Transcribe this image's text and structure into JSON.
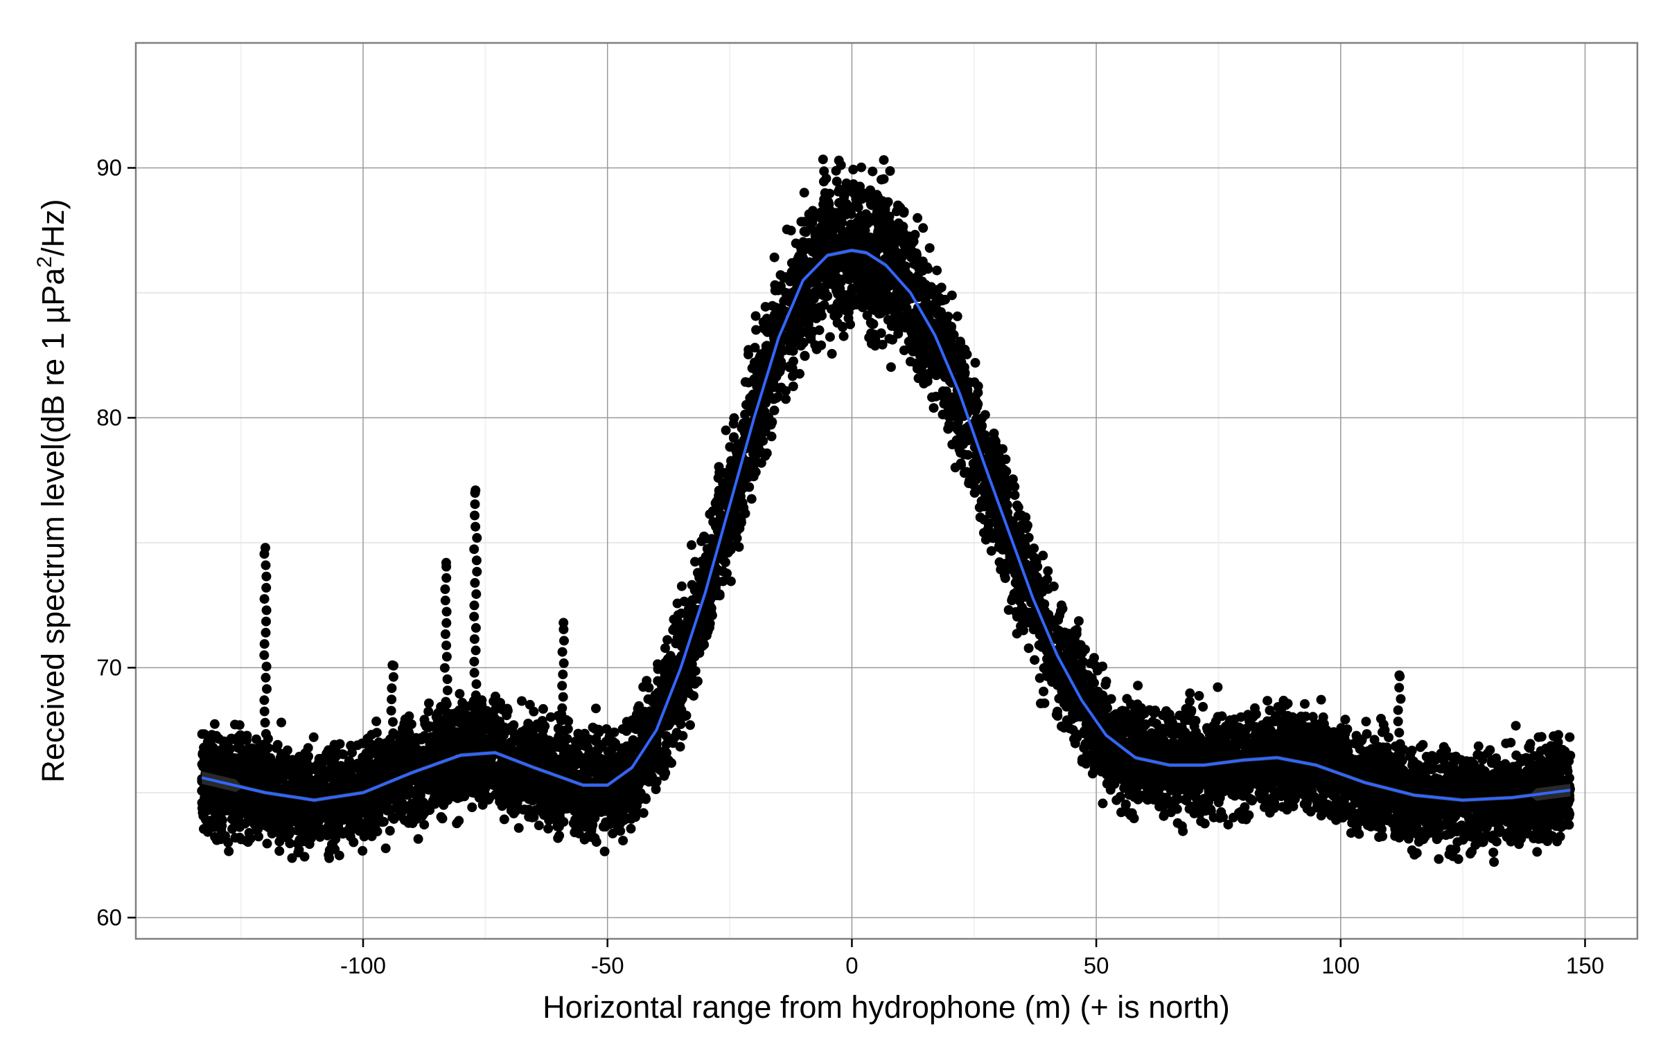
{
  "chart_data": {
    "type": "scatter",
    "xlabel": "Horizontal range from hydrophone (m)  (+ is north)",
    "ylabel_parts": {
      "main": "Received spectrum level(dB re 1 µPa",
      "sup": "2",
      "tail": "/Hz)"
    },
    "xlim": [
      -146.5,
      160.7
    ],
    "ylim": [
      59.15,
      95.0
    ],
    "xticks": [
      -100,
      -50,
      0,
      50,
      100,
      150
    ],
    "xtick_labels": [
      "-100",
      "-50",
      "0",
      "50",
      "100",
      "150"
    ],
    "yticks": [
      60,
      70,
      80,
      90
    ],
    "ytick_labels": [
      "60",
      "70",
      "80",
      "90"
    ],
    "grid": true,
    "point_color": "#000000",
    "smooth_color": "#3366FF",
    "smooth_fit": {
      "x": [
        -133,
        -120,
        -110,
        -100,
        -90,
        -80,
        -73,
        -65,
        -55,
        -50,
        -45,
        -40,
        -35,
        -30,
        -25,
        -20,
        -15,
        -10,
        -5,
        0,
        3,
        7,
        12,
        17,
        22,
        27,
        32,
        37,
        42,
        47,
        52,
        58,
        65,
        72,
        80,
        87,
        95,
        105,
        115,
        125,
        135,
        147
      ],
      "y": [
        65.6,
        65.0,
        64.7,
        65.0,
        65.8,
        66.5,
        66.6,
        66.0,
        65.3,
        65.3,
        66.0,
        67.5,
        70.0,
        73.0,
        76.5,
        80.0,
        83.2,
        85.5,
        86.5,
        86.7,
        86.6,
        86.1,
        85.0,
        83.3,
        81.0,
        78.2,
        75.5,
        72.8,
        70.5,
        68.7,
        67.3,
        66.4,
        66.1,
        66.1,
        66.3,
        66.4,
        66.1,
        65.4,
        64.9,
        64.7,
        64.8,
        65.1
      ]
    },
    "scatter_x_range": [
      -133,
      147
    ],
    "scatter_spread_db": 2.2,
    "scatter_spread_peak_db": 3.3,
    "scatter_count": 9000,
    "outlier_columns": [
      {
        "x": -120,
        "ymax": 74.8
      },
      {
        "x": -83,
        "ymax": 74.2
      },
      {
        "x": -77,
        "ymax": 77.1
      },
      {
        "x": -59,
        "ymax": 71.8
      },
      {
        "x": -94,
        "ymax": 70.1
      },
      {
        "x": 112,
        "ymax": 69.7
      }
    ]
  }
}
